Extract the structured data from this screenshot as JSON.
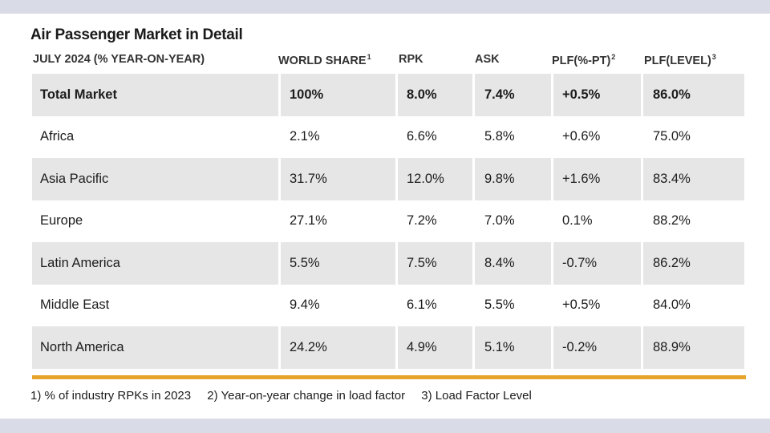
{
  "title": "Air Passenger Market in Detail",
  "chart_data": {
    "type": "table",
    "title": "Air Passenger Market in Detail",
    "columns": [
      {
        "label": "JULY 2024 (% YEAR-ON-YEAR)",
        "sup": ""
      },
      {
        "label": "WORLD SHARE",
        "sup": "1"
      },
      {
        "label": "RPK",
        "sup": ""
      },
      {
        "label": "ASK",
        "sup": ""
      },
      {
        "label": "PLF(%-PT)",
        "sup": "2"
      },
      {
        "label": "PLF(LEVEL)",
        "sup": "3"
      }
    ],
    "rows": [
      {
        "region": "Total Market",
        "world_share": "100%",
        "rpk": "8.0%",
        "ask": "7.4%",
        "plf_pt": "+0.5%",
        "plf_level": "86.0%"
      },
      {
        "region": "Africa",
        "world_share": "2.1%",
        "rpk": "6.6%",
        "ask": "5.8%",
        "plf_pt": "+0.6%",
        "plf_level": "75.0%"
      },
      {
        "region": "Asia Pacific",
        "world_share": "31.7%",
        "rpk": "12.0%",
        "ask": "9.8%",
        "plf_pt": "+1.6%",
        "plf_level": "83.4%"
      },
      {
        "region": "Europe",
        "world_share": "27.1%",
        "rpk": "7.2%",
        "ask": "7.0%",
        "plf_pt": "0.1%",
        "plf_level": "88.2%"
      },
      {
        "region": "Latin America",
        "world_share": "5.5%",
        "rpk": "7.5%",
        "ask": "8.4%",
        "plf_pt": "-0.7%",
        "plf_level": "86.2%"
      },
      {
        "region": "Middle East",
        "world_share": "9.4%",
        "rpk": "6.1%",
        "ask": "5.5%",
        "plf_pt": "+0.5%",
        "plf_level": "84.0%"
      },
      {
        "region": "North America",
        "world_share": "24.2%",
        "rpk": "4.9%",
        "ask": "5.1%",
        "plf_pt": "-0.2%",
        "plf_level": "88.9%"
      }
    ],
    "footnotes": [
      "1) % of industry RPKs in 2023",
      "2) Year-on-year change in load factor",
      "3) Load Factor Level"
    ]
  },
  "colors": {
    "background": "#d9dbe6",
    "card": "#ffffff",
    "row_shade": "#e6e6e6",
    "accent_rule": "#e6a42a",
    "text": "#1c1c1c"
  }
}
